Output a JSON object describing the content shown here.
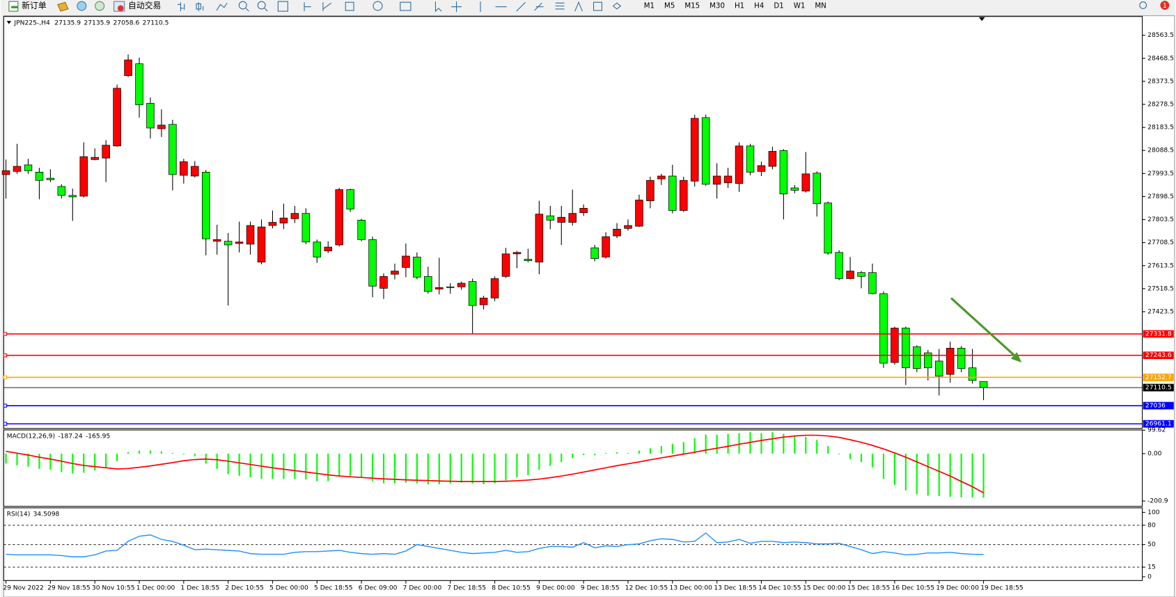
{
  "toolbar": {
    "new_order": "新订单",
    "auto_trade": "自动交易",
    "timeframes": [
      "M1",
      "M5",
      "M15",
      "M30",
      "H1",
      "H4",
      "D1",
      "W1",
      "MN"
    ],
    "notification_count": 1
  },
  "chart_data": [
    {
      "type": "candlestick",
      "symbol": "JPN225-,H4",
      "categories": [
        "29 Nov 2022",
        null,
        null,
        null,
        "29 Nov 18:55",
        null,
        null,
        null,
        "30 Nov 10:55",
        null,
        null,
        null,
        "1 Dec 00:00",
        null,
        null,
        null,
        "1 Dec 18:55",
        null,
        null,
        null,
        "2 Dec 10:55",
        null,
        null,
        null,
        "5 Dec 00:00",
        null,
        null,
        null,
        "5 Dec 18:55",
        null,
        null,
        null,
        "6 Dec 09:00",
        null,
        null,
        null,
        "7 Dec 00:00",
        null,
        null,
        null,
        "7 Dec 18:55",
        null,
        null,
        null,
        "8 Dec 10:55",
        null,
        null,
        null,
        "9 Dec 00:00",
        null,
        null,
        null,
        "9 Dec 18:55",
        null,
        null,
        null,
        "12 Dec 10:55",
        null,
        null,
        null,
        "13 Dec 00:00",
        null,
        null,
        null,
        "13 Dec 18:55",
        null,
        null,
        null,
        "14 Dec 10:55",
        null,
        null,
        null,
        "15 Dec 00:00",
        null,
        null,
        null,
        "15 Dec 18:55",
        null,
        null,
        null,
        "16 Dec 10:55",
        null,
        null,
        null,
        "19 Dec 00:00",
        null,
        null,
        null,
        "19 Dec 18:55"
      ],
      "open": [
        27989,
        28002,
        28029,
        27999,
        27974,
        27940,
        27903,
        27900,
        28051,
        28057,
        28107,
        28397,
        28446,
        28283,
        28178,
        28196,
        27986,
        27983,
        27999,
        27714,
        27714,
        27705,
        27702,
        27628,
        27779,
        27789,
        27807,
        27829,
        27711,
        27674,
        27699,
        27927,
        27801,
        27721,
        27520,
        27578,
        27606,
        27649,
        27569,
        27517,
        27526,
        27526,
        27548,
        27452,
        27480,
        27569,
        27662,
        27640,
        27628,
        27819,
        27792,
        27792,
        27832,
        27687,
        27649,
        27736,
        27767,
        27776,
        27881,
        27971,
        27983,
        27841,
        27962,
        28224,
        27949,
        27955,
        27952,
        28107,
        28002,
        28023,
        28088,
        27934,
        27921,
        27995,
        27872,
        27668,
        27560,
        27585,
        27585,
        27498,
        27214,
        27356,
        27279,
        27254,
        27220,
        27165,
        27273,
        27192,
        27135.9
      ],
      "high": [
        28051,
        28116,
        28054,
        28017,
        28011,
        27949,
        27931,
        28122,
        28097,
        28131,
        28360,
        28484,
        28471,
        28307,
        28258,
        28215,
        28054,
        28045,
        28008,
        27782,
        27748,
        27795,
        27795,
        27804,
        27841,
        27869,
        27860,
        27850,
        27721,
        27714,
        27934,
        27931,
        27807,
        27733,
        27582,
        27622,
        27705,
        27668,
        27609,
        27646,
        27541,
        27548,
        27560,
        27489,
        27569,
        27687,
        27674,
        27683,
        27881,
        27860,
        27860,
        27927,
        27866,
        27699,
        27751,
        27789,
        27804,
        27906,
        27980,
        27992,
        28029,
        27980,
        28236,
        28236,
        28036,
        28017,
        28122,
        28116,
        28042,
        28104,
        28094,
        27946,
        28082,
        28002,
        27878,
        27677,
        27649,
        27591,
        27622,
        27507,
        27362,
        27362,
        27285,
        27266,
        27270,
        27300,
        27282,
        27270,
        27135.9
      ],
      "low": [
        27890,
        27992,
        27992,
        27887,
        27958,
        27890,
        27798,
        27894,
        28048,
        27958,
        28104,
        28391,
        28224,
        28138,
        28144,
        27924,
        27952,
        27977,
        27656,
        27659,
        27449,
        27668,
        27659,
        27619,
        27767,
        27764,
        27789,
        27702,
        27625,
        27665,
        27693,
        27835,
        27714,
        27483,
        27476,
        27557,
        27566,
        27557,
        27498,
        27495,
        27498,
        27514,
        27334,
        27433,
        27467,
        27563,
        27603,
        27628,
        27578,
        27764,
        27699,
        27779,
        27819,
        27631,
        27643,
        27727,
        27758,
        27773,
        27850,
        27946,
        27829,
        27835,
        27940,
        27943,
        27890,
        27934,
        27918,
        27986,
        27983,
        28011,
        27804,
        27912,
        27915,
        27816,
        27659,
        27554,
        27557,
        27520,
        27495,
        27192,
        27205,
        27121,
        27174,
        27140,
        27078,
        27131,
        27174,
        27127,
        27058.6
      ],
      "close": [
        28005,
        28023,
        28005,
        27965,
        27968,
        27903,
        27897,
        28063,
        28060,
        28110,
        28345,
        28462,
        28277,
        28181,
        28193,
        27989,
        28042,
        28023,
        27724,
        27721,
        27699,
        27711,
        27779,
        27773,
        27792,
        27810,
        27829,
        27711,
        27649,
        27690,
        27927,
        27847,
        27721,
        27529,
        27569,
        27591,
        27653,
        27566,
        27507,
        27523,
        27523,
        27541,
        27449,
        27480,
        27560,
        27662,
        27668,
        27634,
        27826,
        27801,
        27813,
        27829,
        27850,
        27643,
        27733,
        27764,
        27779,
        27884,
        27965,
        27983,
        27841,
        27965,
        28221,
        27949,
        27983,
        27983,
        28107,
        27999,
        28026,
        28085,
        27909,
        27924,
        27992,
        27869,
        27665,
        27560,
        27591,
        27569,
        27498,
        27211,
        27356,
        27192,
        27189,
        27192,
        27158,
        27273,
        27189,
        27140,
        27110.5
      ],
      "up_color": "#ff0000",
      "down_color": "#00ff00",
      "ylim": [
        26942,
        28641
      ],
      "yticks": [
        28563.5,
        28468.5,
        28373.5,
        28278.5,
        28183.5,
        28088.5,
        27993.5,
        27898.5,
        27803.5,
        27708.5,
        27613.5,
        27518.5,
        27423.5
      ],
      "levels": [
        {
          "value": 27331.8,
          "color": "#ff0000"
        },
        {
          "value": 27243.6,
          "color": "#ff0000"
        },
        {
          "value": 27152.7,
          "color": "#ffa500"
        },
        {
          "value": 27036.0,
          "color": "#0000ff"
        },
        {
          "value": 26961.1,
          "color": "#0000ff"
        }
      ]
    },
    {
      "type": "macd",
      "label": "MACD(12,26,9)",
      "histogram": [
        -42,
        -49,
        -55,
        -65,
        -68,
        -78,
        -84,
        -81,
        -71,
        -58,
        -32,
        6,
        13,
        13,
        10,
        3,
        -3,
        -10,
        -42,
        -65,
        -87,
        -94,
        -100,
        -107,
        -107,
        -107,
        -107,
        -110,
        -117,
        -117,
        -97,
        -94,
        -100,
        -117,
        -126,
        -126,
        -123,
        -126,
        -130,
        -130,
        -126,
        -123,
        -126,
        -130,
        -126,
        -113,
        -100,
        -91,
        -68,
        -52,
        -36,
        -19,
        -6,
        -6,
        3,
        6,
        3,
        13,
        23,
        32,
        42,
        49,
        65,
        81,
        81,
        84,
        87,
        91,
        87,
        91,
        84,
        78,
        71,
        58,
        32,
        -3,
        -23,
        -36,
        -58,
        -107,
        -133,
        -156,
        -172,
        -178,
        -180,
        -183,
        -185,
        -186,
        -187.24
      ],
      "signal": [
        10,
        2,
        -6,
        -15,
        -23,
        -32,
        -42,
        -50,
        -55,
        -60,
        -65,
        -63,
        -58,
        -52,
        -45,
        -38,
        -30,
        -25,
        -23,
        -26,
        -32,
        -39,
        -46,
        -53,
        -60,
        -66,
        -72,
        -78,
        -84,
        -90,
        -95,
        -98,
        -101,
        -104,
        -107,
        -109,
        -111,
        -113,
        -114,
        -116,
        -117,
        -118,
        -118,
        -118,
        -118,
        -117,
        -115,
        -112,
        -108,
        -102,
        -95,
        -87,
        -78,
        -69,
        -60,
        -51,
        -43,
        -35,
        -26,
        -18,
        -10,
        -2,
        6,
        15,
        23,
        31,
        40,
        48,
        56,
        63,
        70,
        75,
        78,
        78,
        75,
        69,
        59,
        48,
        35,
        20,
        3,
        -15,
        -35,
        -55,
        -75,
        -95,
        -118,
        -140,
        -165.95
      ],
      "histogram_color": "#00ff00",
      "signal_color": "#ff0000",
      "ylim": [
        -223.6,
        100.5
      ],
      "yticks": [
        99.62,
        {
          "value": 0,
          "label": "0.00"
        },
        -200.9
      ]
    },
    {
      "type": "rsi",
      "label": "RSI(14)",
      "values": [
        35,
        34,
        34,
        34,
        34,
        33,
        31,
        31,
        34,
        40,
        41,
        55,
        63,
        65,
        58,
        55,
        49,
        42,
        43,
        42,
        41,
        40,
        36,
        35,
        35,
        35,
        38,
        39,
        39,
        40,
        41,
        38,
        36,
        35,
        36,
        35,
        40,
        50,
        47,
        44,
        41,
        38,
        36,
        37,
        38,
        41,
        38,
        39,
        44,
        47,
        47,
        46,
        53,
        45,
        48,
        47,
        50,
        51,
        56,
        59,
        58,
        54,
        55,
        68,
        53,
        54,
        58,
        52,
        55,
        55,
        53,
        54,
        53,
        51,
        51,
        52,
        47,
        42,
        36,
        39,
        37,
        34,
        35,
        37,
        37,
        38,
        36,
        35,
        34.5098
      ],
      "color": "#1e90ff",
      "ylim": [
        -5.8,
        107
      ],
      "yticks": [
        100,
        80,
        50,
        15,
        0
      ],
      "levels": [
        80,
        50,
        15
      ]
    }
  ]
}
